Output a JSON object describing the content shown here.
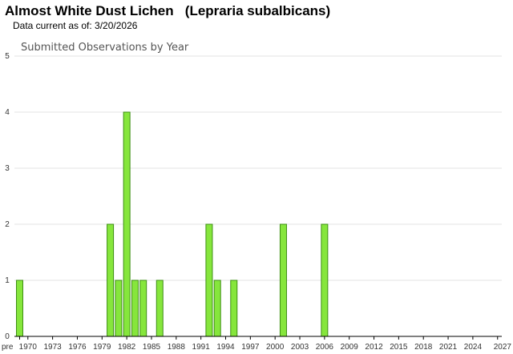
{
  "header": {
    "title": "Almost White Dust Lichen   (Lepraria subalbicans)",
    "updated": "Data current as of: 3/20/2026"
  },
  "chart_data": {
    "type": "bar",
    "title": "Submitted Observations by Year",
    "xlabel": "",
    "ylabel": "",
    "ylim": [
      0,
      5
    ],
    "yticks": [
      0,
      1,
      2,
      3,
      4,
      5
    ],
    "grid": true,
    "categories": [
      "pre",
      "1970",
      "1971",
      "1972",
      "1973",
      "1974",
      "1975",
      "1976",
      "1977",
      "1978",
      "1979",
      "1980",
      "1981",
      "1982",
      "1983",
      "1984",
      "1985",
      "1986",
      "1987",
      "1988",
      "1989",
      "1990",
      "1991",
      "1992",
      "1993",
      "1994",
      "1995",
      "1996",
      "1997",
      "1998",
      "1999",
      "2000",
      "2001",
      "2002",
      "2003",
      "2004",
      "2005",
      "2006",
      "2007",
      "2008",
      "2009",
      "2010",
      "2011",
      "2012",
      "2013",
      "2014",
      "2015",
      "2016",
      "2017",
      "2018",
      "2019",
      "2020",
      "2021",
      "2022",
      "2023",
      "2024",
      "2025",
      "2026",
      "2027"
    ],
    "values": [
      1,
      0,
      0,
      0,
      0,
      0,
      0,
      0,
      0,
      0,
      0,
      2,
      1,
      4,
      1,
      1,
      0,
      1,
      0,
      0,
      0,
      0,
      0,
      2,
      1,
      0,
      1,
      0,
      0,
      0,
      0,
      0,
      2,
      0,
      0,
      0,
      0,
      2,
      0,
      0,
      0,
      0,
      0,
      0,
      0,
      0,
      0,
      0,
      0,
      0,
      0,
      0,
      0,
      0,
      0,
      0,
      0,
      0,
      0
    ],
    "tick_labels": [
      "pre",
      "1970",
      "1973",
      "1976",
      "1979",
      "1982",
      "1985",
      "1988",
      "1991",
      "1994",
      "1997",
      "2000",
      "2003",
      "2006",
      "2009",
      "2012",
      "2015",
      "2018",
      "2021",
      "2024",
      "2027"
    ],
    "tick_label_index": [
      0,
      1,
      4,
      7,
      10,
      13,
      16,
      19,
      22,
      25,
      28,
      31,
      34,
      37,
      40,
      43,
      46,
      49,
      52,
      55,
      58
    ],
    "colors": {
      "bar_fill": "#86e63c",
      "bar_stroke": "#3d8f14",
      "grid": "#e3e3e3",
      "axis": "#000000"
    }
  }
}
